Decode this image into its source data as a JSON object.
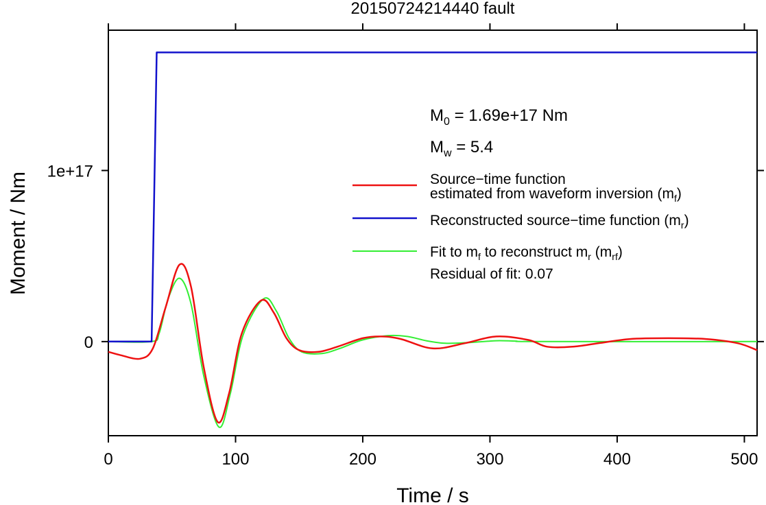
{
  "chart_data": {
    "type": "line",
    "title": "20150724214440 fault",
    "xlabel": "Time / s",
    "ylabel": "Moment / Nm",
    "xlim": [
      0,
      510
    ],
    "ylim": [
      -5.5e+16,
      1.82e+17
    ],
    "x_ticks": [
      {
        "value": 0,
        "label": "0"
      },
      {
        "value": 100,
        "label": "100"
      },
      {
        "value": 200,
        "label": "200"
      },
      {
        "value": 300,
        "label": "300"
      },
      {
        "value": 400,
        "label": "400"
      },
      {
        "value": 500,
        "label": "500"
      }
    ],
    "y_ticks": [
      {
        "value": 0,
        "label": "0"
      },
      {
        "value": 1e+17,
        "label": "1e+17"
      }
    ],
    "annotations": {
      "m0": {
        "base": "M",
        "sub": "0",
        "rest": " = 1.69e+17 Nm"
      },
      "mw": {
        "base": "M",
        "sub": "w",
        "rest": " = 5.4"
      },
      "residual": "Residual of fit: 0.07"
    },
    "legend": {
      "placement": "right",
      "items": [
        {
          "key": "mf",
          "line1": "Source−time function",
          "line2_pre": "estimated from waveform inversion (m",
          "line2_sub": "f",
          "line2_post": ")",
          "color": "#ee1111"
        },
        {
          "key": "mr",
          "pre": "Reconstructed source−time function (m",
          "sub": "r",
          "post": ")",
          "color": "#1111cc"
        },
        {
          "key": "mrf",
          "pre": "Fit to m",
          "sub": "f",
          "mid": " to reconstruct m",
          "sub2": "r",
          "mid2": " (m",
          "sub3": "rf",
          "post": ")",
          "color": "#33ee33"
        }
      ]
    },
    "series": [
      {
        "key": "mr",
        "color": "#1111cc",
        "x": [
          0,
          34,
          38,
          510
        ],
        "y": [
          0,
          0,
          1.69e+17,
          1.69e+17
        ]
      },
      {
        "key": "mf",
        "color": "#ee1111",
        "x": [
          0,
          10,
          25,
          35,
          45,
          56,
          65,
          75,
          86,
          95,
          105,
          120,
          130,
          140,
          150,
          165,
          180,
          200,
          215,
          230,
          255,
          280,
          305,
          330,
          345,
          365,
          385,
          410,
          440,
          470,
          495,
          510
        ],
        "y": [
          -6000000000000000.0,
          -8000000000000000.0,
          -1e+16,
          -4000000000000000.0,
          2e+16,
          4.5e+16,
          3.2e+16,
          -1.5e+16,
          -4.7e+16,
          -3e+16,
          5000000000000000.0,
          2.4e+16,
          1.7e+16,
          2000000000000000.0,
          -5000000000000000.0,
          -6000000000000000.0,
          -3000000000000000.0,
          2000000000000000.0,
          3000000000000000.0,
          1500000000000000.0,
          -4000000000000000.0,
          -1000000000000000.0,
          3000000000000000.0,
          1000000000000000.0,
          -3000000000000000.0,
          -3000000000000000.0,
          -1000000000000000.0,
          1500000000000000.0,
          2000000000000000.0,
          1500000000000000.0,
          -1000000000000000.0,
          -5000000000000000.0
        ]
      },
      {
        "key": "mrf",
        "color": "#33ee33",
        "x": [
          0,
          34,
          40,
          47,
          56,
          65,
          75,
          87,
          96,
          106,
          122,
          132,
          142,
          152,
          168,
          182,
          200,
          220,
          235,
          250,
          265,
          285,
          305,
          320,
          340,
          510
        ],
        "y": [
          0,
          0,
          5000000000000000.0,
          2.5e+16,
          3.7e+16,
          2.2e+16,
          -2e+16,
          -5e+16,
          -3e+16,
          4000000000000000.0,
          2.5e+16,
          1.8e+16,
          2000000000000000.0,
          -6000000000000000.0,
          -7000000000000000.0,
          -4000000000000000.0,
          1000000000000000.0,
          3500000000000000.0,
          3000000000000000.0,
          500000000000000.0,
          -1000000000000000.0,
          -500000000000000.0,
          500000000000000.0,
          300000000000000.0,
          0,
          0
        ]
      }
    ]
  }
}
